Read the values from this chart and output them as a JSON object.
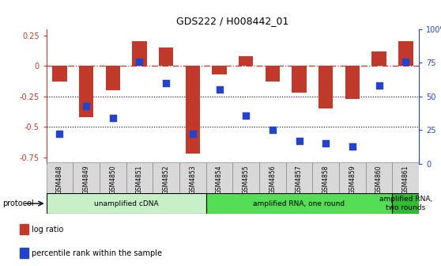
{
  "title": "GDS222 / H008442_01",
  "samples": [
    "GSM4848",
    "GSM4849",
    "GSM4850",
    "GSM4851",
    "GSM4852",
    "GSM4853",
    "GSM4854",
    "GSM4855",
    "GSM4856",
    "GSM4857",
    "GSM4858",
    "GSM4859",
    "GSM4860",
    "GSM4861"
  ],
  "log_ratio": [
    -0.13,
    -0.42,
    -0.2,
    0.2,
    0.15,
    -0.72,
    -0.07,
    0.08,
    -0.13,
    -0.22,
    -0.35,
    -0.27,
    0.12,
    0.2
  ],
  "percentile_rank": [
    22,
    43,
    34,
    76,
    60,
    22,
    55,
    36,
    25,
    17,
    15,
    13,
    58,
    76
  ],
  "bar_color": "#C0392B",
  "dot_color": "#2244CC",
  "ylim_left": [
    -0.8,
    0.3
  ],
  "ylim_right": [
    0,
    100
  ],
  "yticks_left": [
    -0.75,
    -0.5,
    -0.25,
    0.0,
    0.25
  ],
  "ytick_labels_left": [
    "-0.75",
    "-0.5",
    "-0.25",
    "0",
    "0.25"
  ],
  "yticks_right": [
    0,
    25,
    50,
    75,
    100
  ],
  "ytick_labels_right": [
    "0",
    "25",
    "50",
    "75",
    "100%"
  ],
  "hlines_dotted": [
    -0.5,
    -0.25
  ],
  "hline_dashdot": 0.0,
  "protocol_groups": [
    {
      "label": "unamplified cDNA",
      "start": 0,
      "end": 5,
      "color": "#c8f0c8"
    },
    {
      "label": "amplified RNA, one round",
      "start": 6,
      "end": 12,
      "color": "#55dd55"
    },
    {
      "label": "amplified RNA,\ntwo rounds",
      "start": 13,
      "end": 13,
      "color": "#33bb33"
    }
  ],
  "legend_items": [
    {
      "label": "log ratio",
      "color": "#C0392B"
    },
    {
      "label": "percentile rank within the sample",
      "color": "#2244CC"
    }
  ],
  "protocol_label": "protocol",
  "bar_width": 0.55,
  "dot_size": 28
}
